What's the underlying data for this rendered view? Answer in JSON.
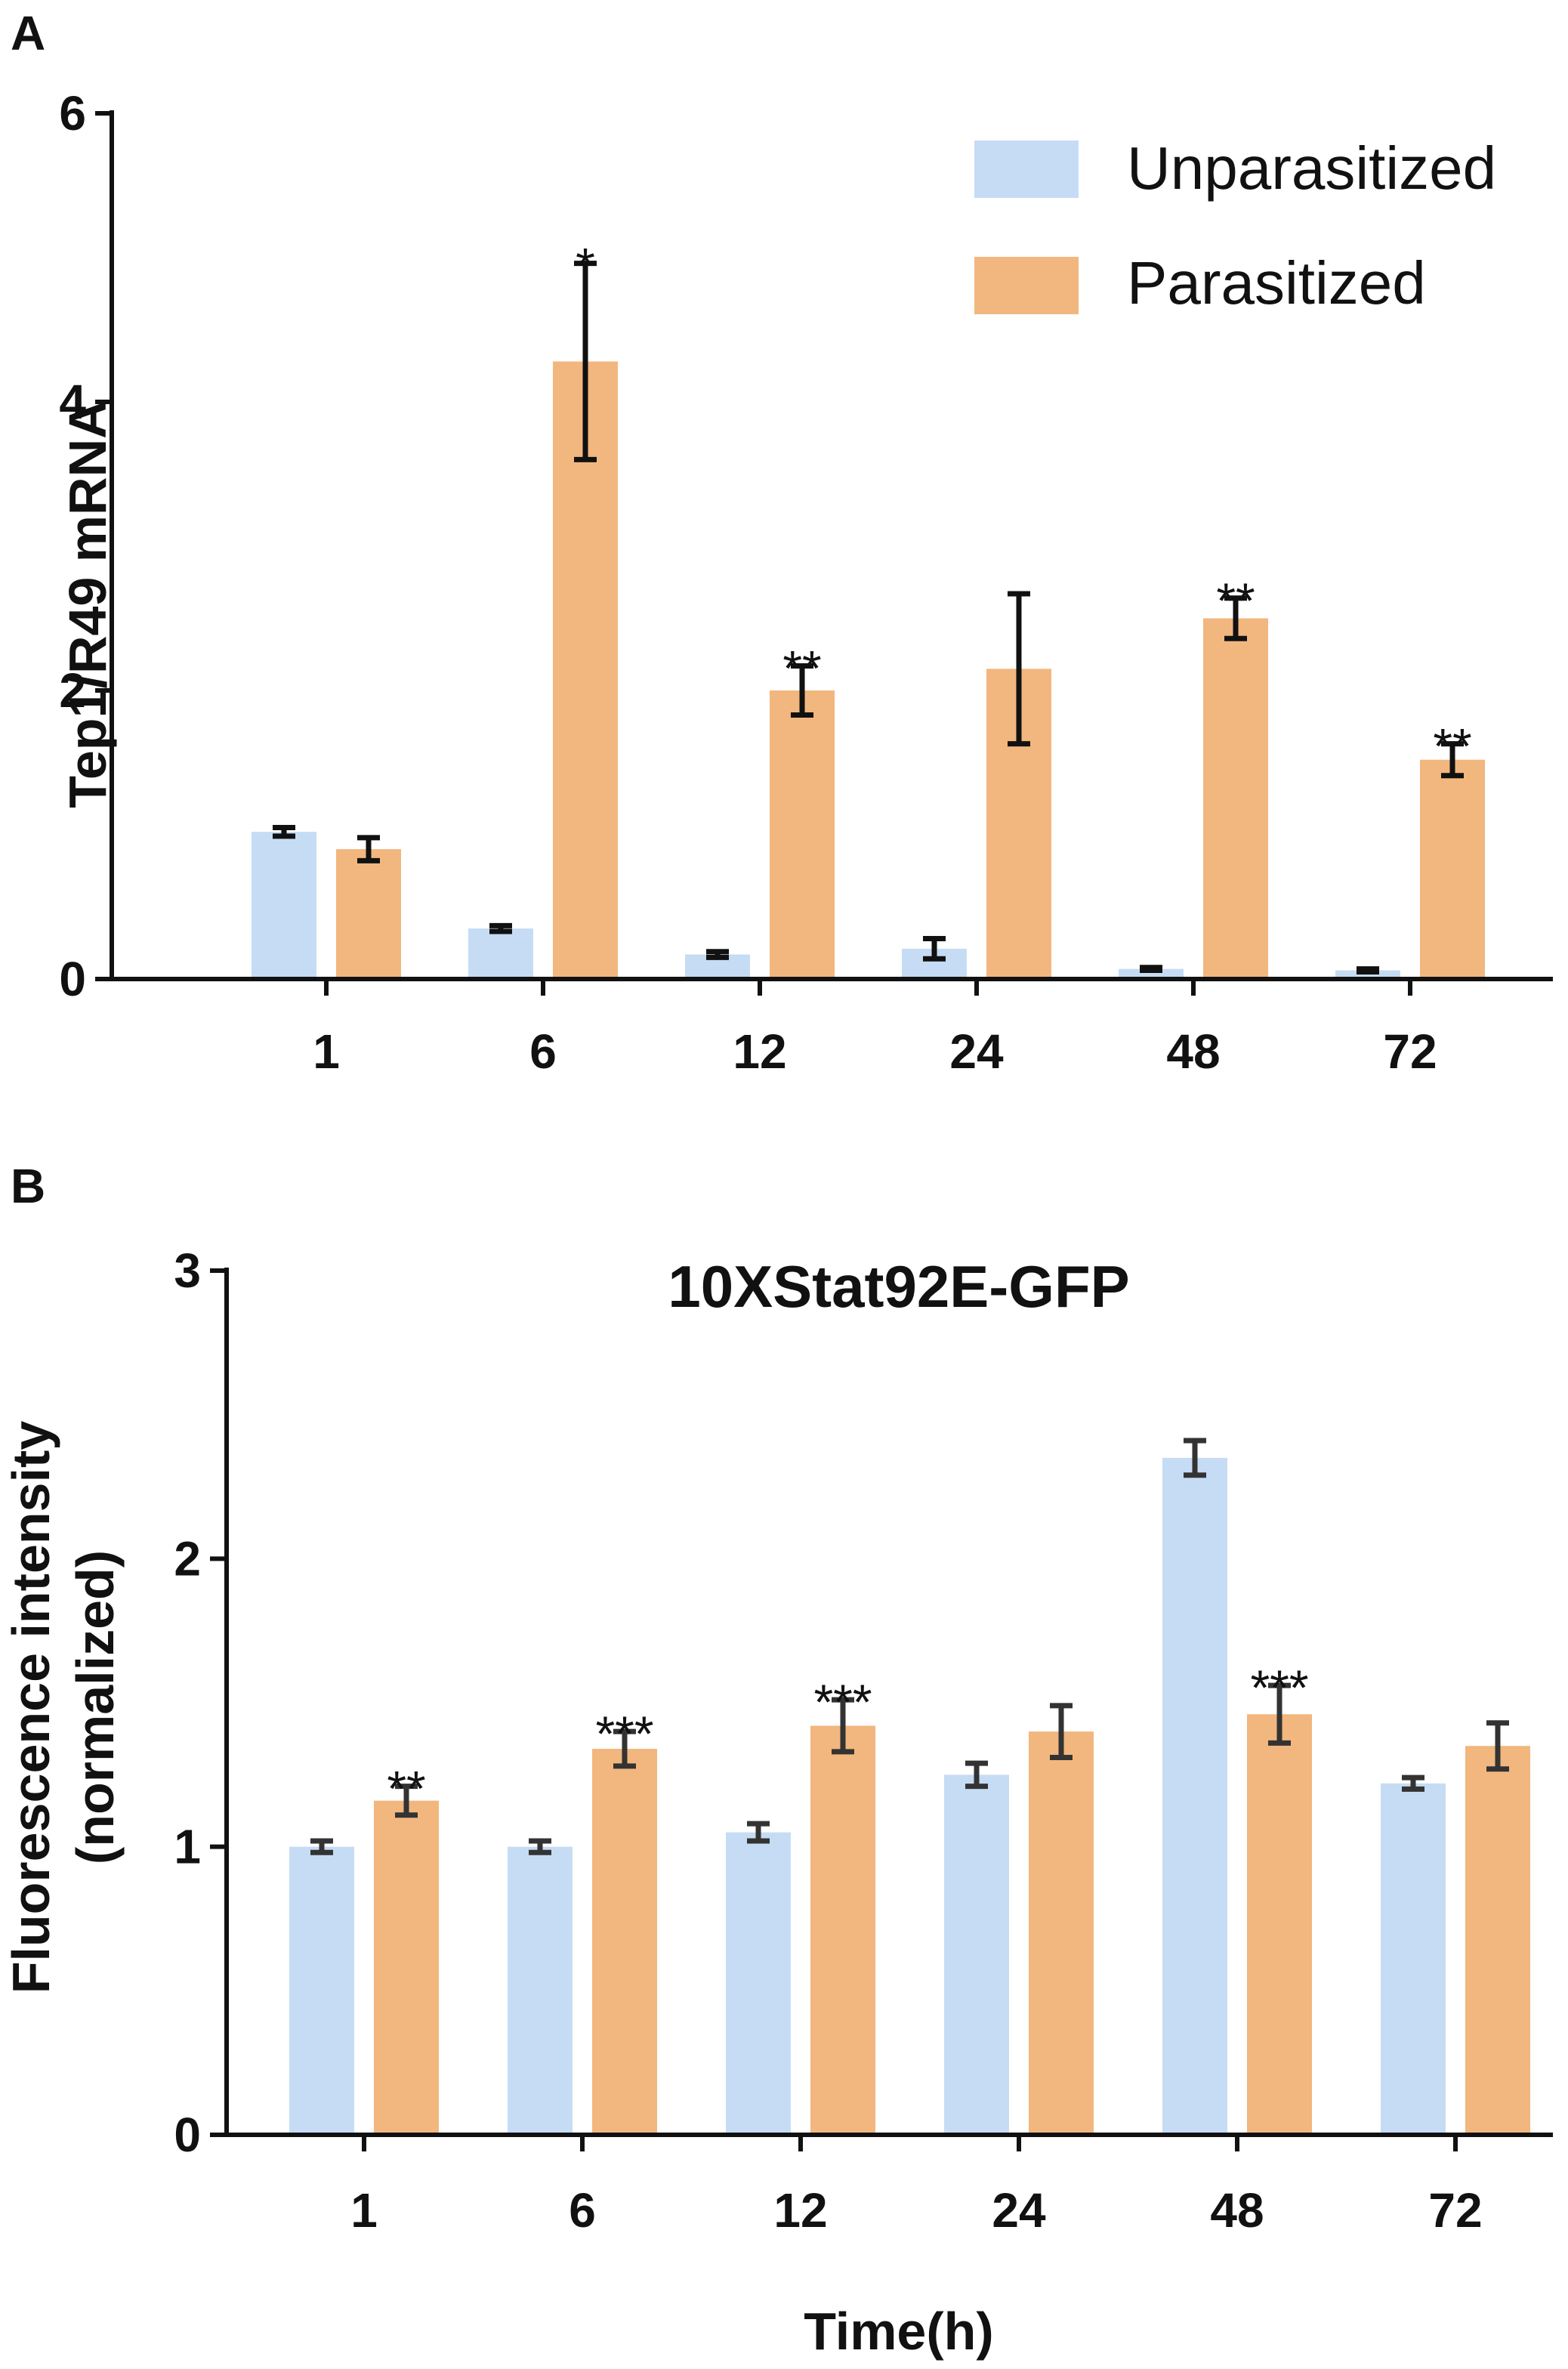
{
  "chart_data": [
    {
      "panel": "A",
      "type": "bar",
      "title": "",
      "xlabel": "",
      "ylabel": "Tep1/R49 mRNA",
      "ylim": [
        0,
        6
      ],
      "yticks": [
        0,
        2,
        4,
        6
      ],
      "categories": [
        "1",
        "6",
        "12",
        "24",
        "48",
        "72"
      ],
      "series": [
        {
          "name": "Unparasitized",
          "color": "#c6dcf4",
          "values": [
            1.02,
            0.35,
            0.17,
            0.21,
            0.07,
            0.06
          ],
          "errors": [
            0.03,
            0.02,
            0.02,
            0.07,
            0.01,
            0.01
          ],
          "significance": [
            "",
            "",
            "",
            "",
            "",
            ""
          ]
        },
        {
          "name": "Parasitized",
          "color": "#f2b77e",
          "values": [
            0.9,
            4.28,
            2.0,
            2.15,
            2.5,
            1.52
          ],
          "errors": [
            0.08,
            0.68,
            0.17,
            0.52,
            0.14,
            0.11
          ],
          "significance": [
            "",
            "*",
            "**",
            "",
            "**",
            "**"
          ]
        }
      ],
      "errorbar_color": "#111111",
      "legend": {
        "position": "top-right",
        "entries": [
          "Unparasitized",
          "Parasitized"
        ]
      }
    },
    {
      "panel": "B",
      "type": "bar",
      "title": "10XStat92E-GFP",
      "xlabel": "Time(h)",
      "ylabel": [
        "Fluorescence intensity",
        "(normalized)"
      ],
      "ylim": [
        0,
        3
      ],
      "yticks": [
        0,
        1,
        2,
        3
      ],
      "categories": [
        "1",
        "6",
        "12",
        "24",
        "48",
        "72"
      ],
      "series": [
        {
          "name": "Unparasitized",
          "color": "#c6dcf4",
          "values": [
            1.0,
            1.0,
            1.05,
            1.25,
            2.35,
            1.22
          ],
          "errors": [
            0.02,
            0.02,
            0.03,
            0.04,
            0.06,
            0.02
          ],
          "significance": [
            "",
            "",
            "",
            "",
            "",
            ""
          ]
        },
        {
          "name": "Parasitized",
          "color": "#f2b77e",
          "values": [
            1.16,
            1.34,
            1.42,
            1.4,
            1.46,
            1.35
          ],
          "errors": [
            0.05,
            0.06,
            0.09,
            0.09,
            0.1,
            0.08
          ],
          "significance": [
            "**",
            "***",
            "***",
            "",
            "***",
            ""
          ]
        }
      ],
      "errorbar_color": "#333333"
    }
  ]
}
